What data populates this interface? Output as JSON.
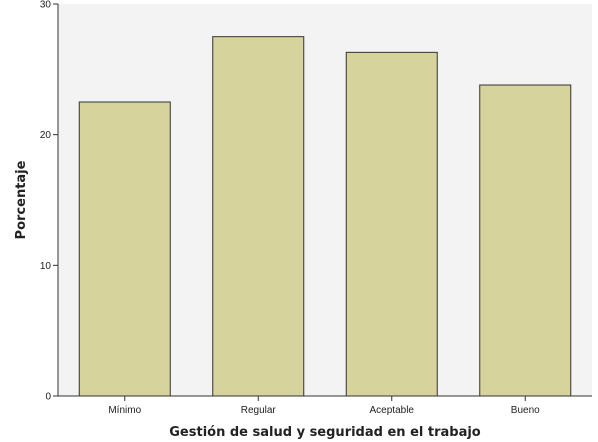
{
  "chart_data": {
    "type": "bar",
    "title": "",
    "xlabel": "Gestión de salud y seguridad en el trabajo",
    "ylabel": "Porcentaje",
    "categories": [
      "Mínimo",
      "Regular",
      "Aceptable",
      "Bueno"
    ],
    "values": [
      22.5,
      27.5,
      26.3,
      23.8
    ],
    "ylim": [
      0,
      30
    ],
    "yticks": [
      "0",
      "10",
      "20",
      "30"
    ],
    "grid": false,
    "legend": "none",
    "colors": {
      "bar_fill": "#d6d39c",
      "bar_stroke": "#333333",
      "plot_background": "#f3f3f4",
      "axis": "#333333"
    }
  }
}
